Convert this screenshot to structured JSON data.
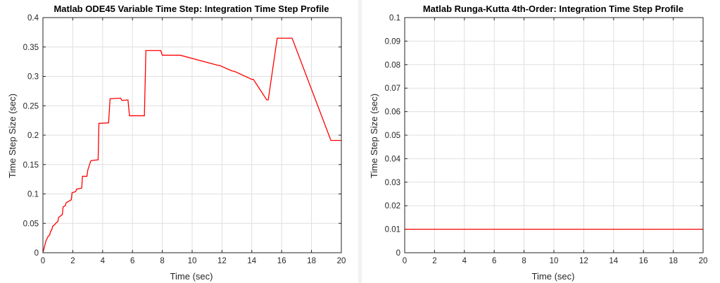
{
  "chart_data": [
    {
      "type": "line",
      "title": "Matlab ODE45 Variable Time Step:  Integration Time Step Profile",
      "xlabel": "Time (sec)",
      "ylabel": "Time Step Size (sec)",
      "xlim": [
        0,
        20
      ],
      "ylim": [
        0,
        0.4
      ],
      "xticks": [
        "0",
        "2",
        "4",
        "6",
        "8",
        "10",
        "12",
        "14",
        "16",
        "18",
        "20"
      ],
      "yticks": [
        "0",
        "0.05",
        "0.1",
        "0.15",
        "0.2",
        "0.25",
        "0.3",
        "0.35",
        "0.4"
      ],
      "grid": true,
      "series": [
        {
          "color": "#ff0000",
          "x": [
            0,
            0.05,
            0.1,
            0.15,
            0.2,
            0.3,
            0.35,
            0.45,
            0.5,
            0.6,
            0.65,
            0.8,
            0.85,
            1.0,
            1.05,
            1.3,
            1.35,
            1.5,
            1.55,
            1.9,
            1.95,
            2.2,
            2.25,
            2.6,
            2.65,
            2.95,
            3.0,
            3.2,
            3.3,
            3.7,
            3.75,
            4.4,
            4.5,
            5.2,
            5.3,
            5.7,
            5.8,
            6.8,
            6.9,
            7.9,
            8.0,
            9.1,
            9.2,
            11.7,
            11.8,
            12.7,
            12.8,
            14.0,
            14.1,
            15.0,
            15.1,
            15.7,
            15.8,
            16.6,
            16.7,
            19.3,
            19.4,
            20.0
          ],
          "y": [
            0,
            0.005,
            0.01,
            0.015,
            0.02,
            0.025,
            0.028,
            0.03,
            0.035,
            0.04,
            0.045,
            0.048,
            0.05,
            0.053,
            0.06,
            0.065,
            0.078,
            0.08,
            0.085,
            0.09,
            0.102,
            0.104,
            0.108,
            0.11,
            0.13,
            0.13,
            0.14,
            0.156,
            0.157,
            0.158,
            0.22,
            0.221,
            0.262,
            0.263,
            0.259,
            0.26,
            0.233,
            0.233,
            0.344,
            0.344,
            0.336,
            0.336,
            0.336,
            0.319,
            0.319,
            0.309,
            0.309,
            0.295,
            0.295,
            0.26,
            0.26,
            0.365,
            0.365,
            0.365,
            0.365,
            0.191,
            0.191,
            0.191
          ]
        }
      ]
    },
    {
      "type": "line",
      "title": "Matlab Runga-Kutta 4th-Order:  Integration Time Step Profile",
      "xlabel": "Time (sec)",
      "ylabel": "Time Step Size (sec)",
      "xlim": [
        0,
        20
      ],
      "ylim": [
        0,
        0.1
      ],
      "xticks": [
        "0",
        "2",
        "4",
        "6",
        "8",
        "10",
        "12",
        "14",
        "16",
        "18",
        "20"
      ],
      "yticks": [
        "0",
        "0.01",
        "0.02",
        "0.03",
        "0.04",
        "0.05",
        "0.06",
        "0.07",
        "0.08",
        "0.09",
        "0.1"
      ],
      "grid": true,
      "series": [
        {
          "color": "#ff0000",
          "x": [
            0,
            20
          ],
          "y": [
            0.01,
            0.01
          ]
        }
      ]
    }
  ]
}
